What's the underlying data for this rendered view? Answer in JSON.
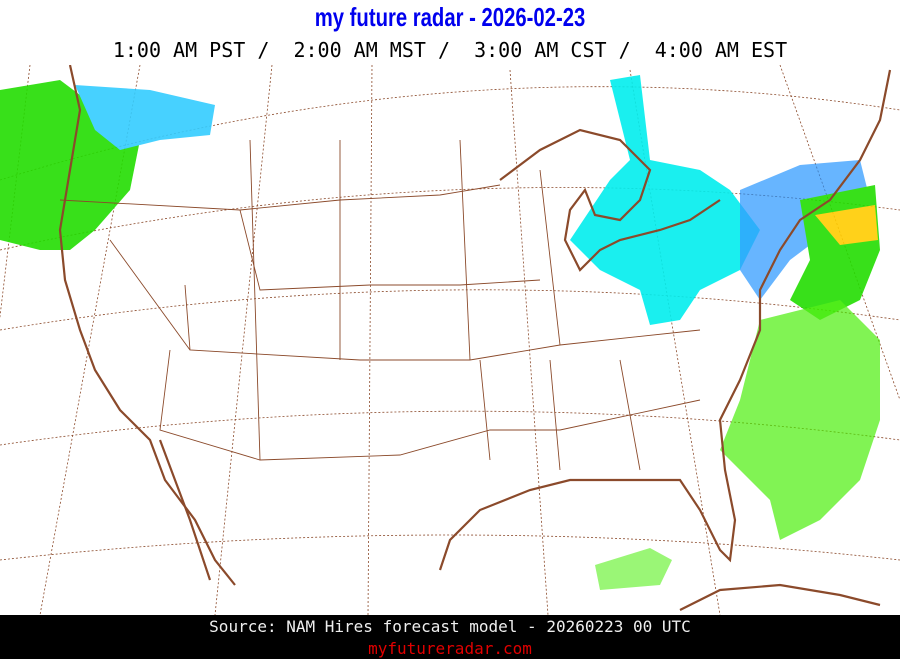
{
  "header": {
    "title": "my future radar - 2026-02-23",
    "times": "1:00 AM PST /  2:00 AM MST /  3:00 AM CST /  4:00 AM EST"
  },
  "map": {
    "region": "Continental United States",
    "layer": "forecast radar reflectivity",
    "colors": {
      "coast": "#8b4a2b",
      "light_precip": "#00ee00",
      "snow_light": "#00e5ee",
      "snow_moderate": "#1e90ff",
      "heavy": "#ffd700"
    }
  },
  "footer": {
    "source": "Source: NAM Hires forecast model - 20260223 00 UTC",
    "site": "myfutureradar.com"
  }
}
